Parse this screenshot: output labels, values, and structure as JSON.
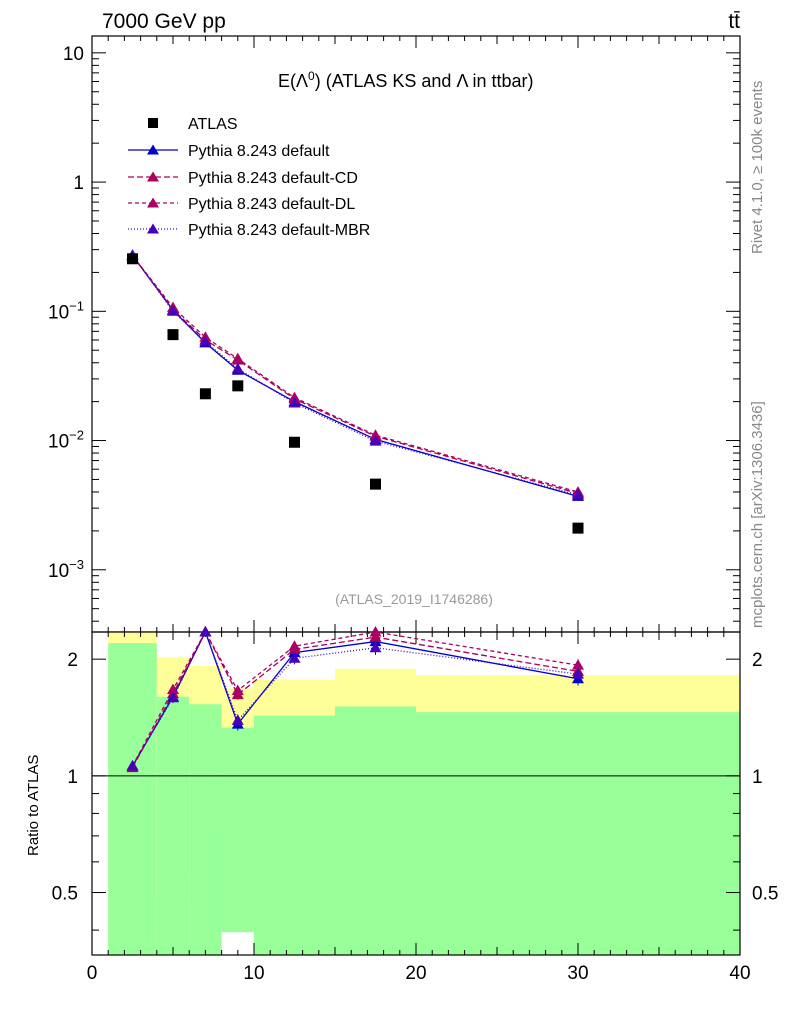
{
  "header": {
    "energy_label": "7000 GeV pp",
    "process_label": "tt̄",
    "rivet_label": "Rivet 4.1.0, ≥ 100k events",
    "mcplots_label": "mcplots.cern.ch [arXiv:1306.3436]"
  },
  "colors": {
    "atlas": "#000000",
    "default": "#0000cc",
    "default_cd": "#aa0055",
    "default_dl": "#aa0066",
    "default_mbr": "#4400bb",
    "band_inner": "#99ff99",
    "band_outer": "#ffff99"
  },
  "chart_data": {
    "type": "scatter",
    "title": "E(Λ⁰) (ATLAS KS and Λ in ttbar)",
    "title_main": "E(Λ",
    "title_sup": "0",
    "title_rest": ") (ATLAS KS and Λ in ttbar)",
    "analysis_id": "(ATLAS_2019_I1746286)",
    "xlabel": "",
    "ylabel_main": "",
    "ylabel_ratio": "Ratio to ATLAS",
    "xlim": [
      0,
      40
    ],
    "ylim_main": [
      0.00033,
      13.5
    ],
    "ylim_ratio": [
      0.345,
      2.35
    ],
    "y_scale": "log",
    "ratio_scale": "log",
    "x_ticks": [
      0,
      10,
      20,
      30,
      40
    ],
    "y_ticks_main": [
      {
        "value": 10,
        "mant": "10",
        "exp": ""
      },
      {
        "value": 1,
        "mant": "1",
        "exp": ""
      },
      {
        "value": 0.1,
        "mant": "10",
        "exp": "−1"
      },
      {
        "value": 0.01,
        "mant": "10",
        "exp": "−2"
      },
      {
        "value": 0.001,
        "mant": "10",
        "exp": "−3"
      }
    ],
    "y_ticks_ratio": [
      {
        "value": 2,
        "label": "2"
      },
      {
        "value": 1,
        "label": "1"
      },
      {
        "value": 0.5,
        "label": "0.5"
      }
    ],
    "x": [
      2.5,
      5,
      7,
      9,
      12.5,
      17.5,
      30
    ],
    "x_edges": [
      1,
      4,
      6,
      8,
      10,
      15,
      20,
      40
    ],
    "atlas": {
      "name": "ATLAS",
      "values": [
        0.255,
        0.066,
        0.023,
        0.0265,
        0.0097,
        0.0046,
        0.0021
      ]
    },
    "band_inner": {
      "low": [
        0.01,
        0.01,
        0.01,
        0.01,
        0.01,
        0.01,
        0.01
      ],
      "high": [
        2.2,
        1.6,
        1.53,
        1.33,
        1.43,
        1.51,
        1.46
      ]
    },
    "band_outer": {
      "low": [
        0.01,
        0.48,
        0.55,
        0.76,
        0.69,
        0.59,
        0.64
      ],
      "high": [
        2.7,
        2.02,
        1.92,
        1.68,
        1.77,
        1.89,
        1.82
      ]
    },
    "white_gap": {
      "x0": 8,
      "x1": 10,
      "low": 0.01,
      "high": 0.395
    },
    "series": [
      {
        "name": "Pythia 8.243 default",
        "key": "default",
        "dash": "",
        "values": [
          0.27,
          0.102,
          0.057,
          0.035,
          0.02,
          0.0102,
          0.0037
        ],
        "ratio": [
          1.06,
          1.6,
          2.5,
          1.36,
          2.08,
          2.22,
          1.78
        ],
        "ratio_err": [
          0.02,
          0.05,
          0.09,
          0.05,
          0.07,
          0.09,
          0.07
        ]
      },
      {
        "name": "Pythia 8.243 default-CD",
        "key": "default_cd",
        "dash": "6,3",
        "values": [
          0.27,
          0.103,
          0.06,
          0.042,
          0.021,
          0.0108,
          0.0039
        ],
        "ratio": [
          1.05,
          1.63,
          2.55,
          1.62,
          2.12,
          2.28,
          1.86
        ],
        "ratio_err": [
          0.02,
          0.05,
          0.09,
          0.05,
          0.07,
          0.09,
          0.07
        ]
      },
      {
        "name": "Pythia 8.243 default-DL",
        "key": "default_dl",
        "dash": "4,3",
        "values": [
          0.27,
          0.107,
          0.063,
          0.043,
          0.0215,
          0.011,
          0.004
        ],
        "ratio": [
          1.06,
          1.67,
          2.6,
          1.66,
          2.16,
          2.35,
          1.93
        ],
        "ratio_err": [
          0.02,
          0.05,
          0.09,
          0.05,
          0.07,
          0.09,
          0.07
        ]
      },
      {
        "name": "Pythia 8.243 default-MBR",
        "key": "default_mbr",
        "dash": "1,2",
        "values": [
          0.272,
          0.1,
          0.058,
          0.036,
          0.0195,
          0.0099,
          0.0038
        ],
        "ratio": [
          1.06,
          1.59,
          2.55,
          1.39,
          2.01,
          2.14,
          1.83
        ],
        "ratio_err": [
          0.02,
          0.05,
          0.09,
          0.05,
          0.07,
          0.09,
          0.07
        ]
      }
    ]
  }
}
